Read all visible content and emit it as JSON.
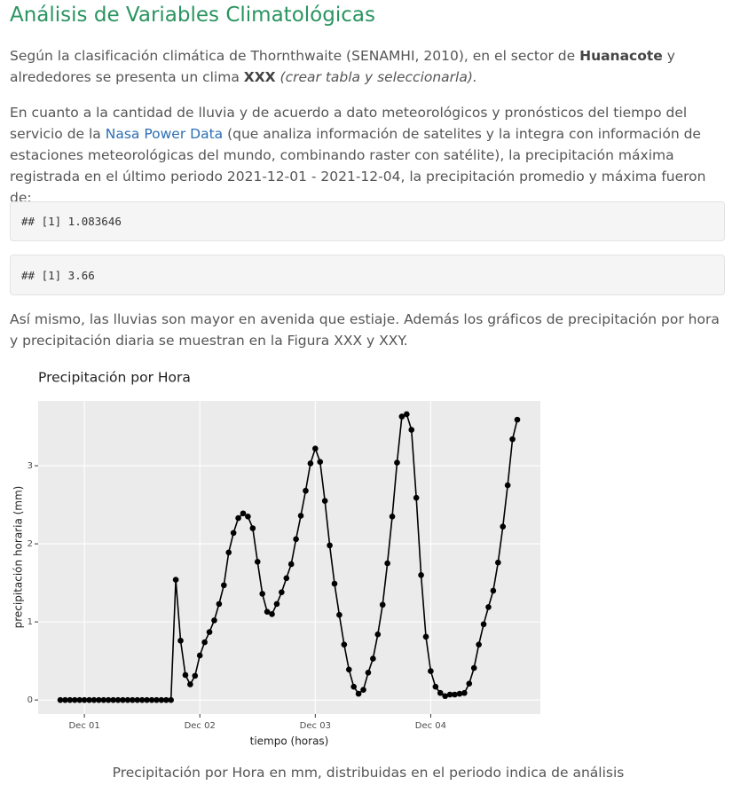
{
  "title": "Análisis de Variables Climatológicas",
  "paragraph_1": [
    "Según la clasificación climática de Thornthwaite (SENAMHI, 2010), en el sector de ",
    "Huanacote",
    " y alrededores se presenta un clima ",
    "XXX",
    " (crear tabla y seleccionarla)."
  ],
  "paragraph_2": [
    "En cuanto a la cantidad de lluvia y de acuerdo a dato meteorológicos y pronósticos del tiempo del servicio de la ",
    "Nasa Power Data",
    " (que analiza información de satelites y la integra con información de estaciones meteorológicas del mundo, combinando raster con satélite), la precipitación máxima registrada en el último periodo 2021-12-01 - 2021-12-04, la precipitación promedio y máxima fueron de:"
  ],
  "code_outputs": [
    "## [1] 1.083646",
    "## [1] 3.66"
  ],
  "paragraph_3": "Así mismo, las lluvias son mayor en avenida que estiaje. Además los gráficos de precipitación por hora y precipitación diaria se muestran en la Figura XXX y XXY.",
  "chart_data": {
    "type": "line",
    "title": "Precipitación por Hora",
    "x_label": "tiempo (horas)",
    "y_label": "precipitación horaria (mm)",
    "categories": [
      null,
      null,
      null,
      null,
      null,
      "Dec 01",
      null,
      null,
      null,
      null,
      null,
      null,
      null,
      null,
      null,
      null,
      null,
      null,
      null,
      null,
      null,
      null,
      null,
      null,
      null,
      null,
      null,
      null,
      null,
      "Dec 02",
      null,
      null,
      null,
      null,
      null,
      null,
      null,
      null,
      null,
      null,
      null,
      null,
      null,
      null,
      null,
      null,
      null,
      null,
      null,
      null,
      null,
      null,
      null,
      "Dec 03",
      null,
      null,
      null,
      null,
      null,
      null,
      null,
      null,
      null,
      null,
      null,
      null,
      null,
      null,
      null,
      null,
      null,
      null,
      null,
      null,
      null,
      null,
      null,
      "Dec 04",
      null,
      null,
      null,
      null,
      null,
      null,
      null,
      null,
      null,
      null,
      null,
      null,
      null,
      null,
      null,
      null,
      null,
      null
    ],
    "values": [
      0,
      0,
      0,
      0,
      0,
      0,
      0,
      0,
      0,
      0,
      0,
      0,
      0,
      0,
      0,
      0,
      0,
      0,
      0,
      0,
      0,
      0,
      0,
      0,
      1.54,
      0.76,
      0.32,
      0.2,
      0.31,
      0.57,
      0.74,
      0.87,
      1.02,
      1.23,
      1.47,
      1.89,
      2.14,
      2.33,
      2.39,
      2.35,
      2.2,
      1.77,
      1.36,
      1.13,
      1.1,
      1.23,
      1.38,
      1.56,
      1.74,
      2.06,
      2.36,
      2.68,
      3.03,
      3.22,
      3.05,
      2.55,
      1.98,
      1.49,
      1.09,
      0.71,
      0.39,
      0.17,
      0.08,
      0.13,
      0.35,
      0.53,
      0.84,
      1.22,
      1.75,
      2.35,
      3.04,
      3.63,
      3.66,
      3.46,
      2.59,
      1.6,
      0.81,
      0.37,
      0.17,
      0.09,
      0.05,
      0.07,
      0.07,
      0.08,
      0.09,
      0.21,
      0.41,
      0.71,
      0.97,
      1.19,
      1.4,
      1.76,
      2.22,
      2.75,
      3.34,
      3.59
    ],
    "color": "#000000",
    "markers": true,
    "ylim": [
      -0.18,
      3.83
    ],
    "yticks": [
      0,
      1,
      2,
      3
    ],
    "grid": true
  },
  "caption": "Precipitación por Hora en mm, distribuidas en el periodo indica de análisis"
}
